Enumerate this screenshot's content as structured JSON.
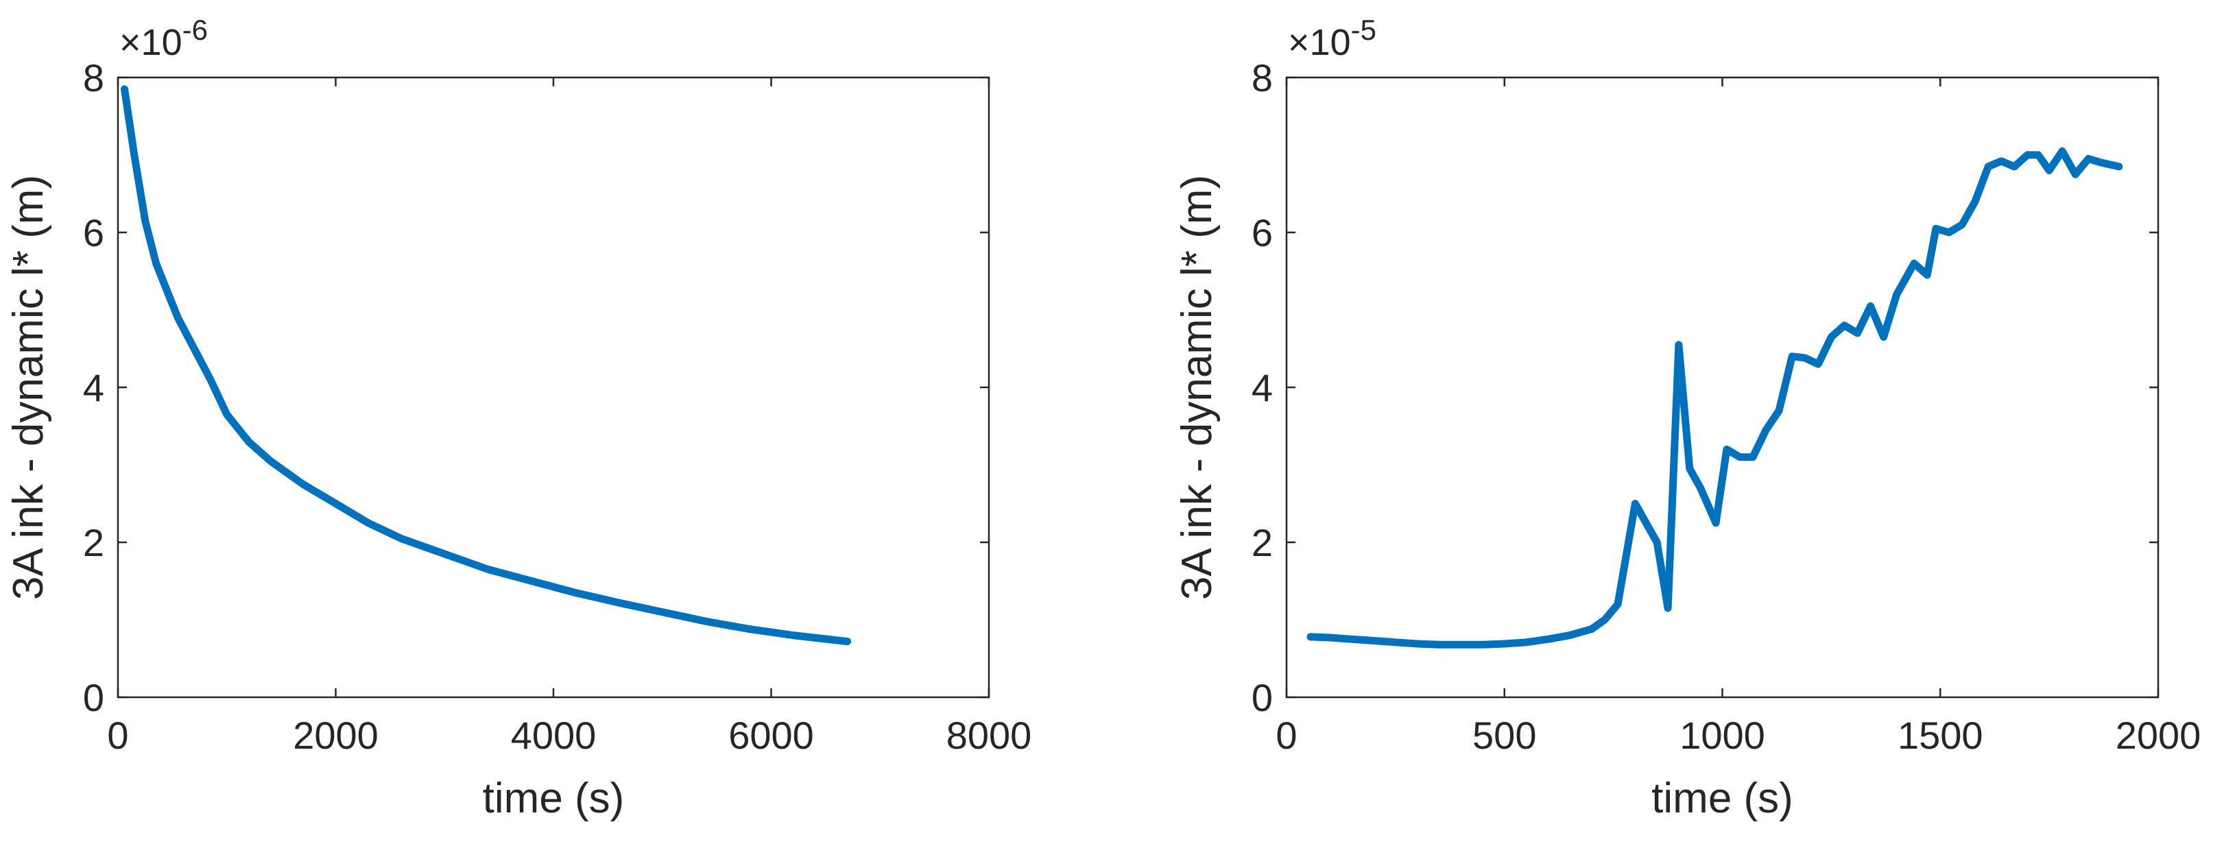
{
  "chart_data": [
    {
      "type": "line",
      "xlabel": "time (s)",
      "ylabel": "3A ink - dynamic l* (m)",
      "exponent_label": "×10",
      "exponent_power": "-6",
      "xlim": [
        0,
        8000
      ],
      "ylim": [
        0,
        8
      ],
      "xticks": [
        "0",
        "2000",
        "4000",
        "6000",
        "8000"
      ],
      "yticks": [
        "0",
        "2",
        "4",
        "6",
        "8"
      ],
      "grid": false,
      "line_color": "#0072BD",
      "series": [
        {
          "x": [
            60,
            150,
            250,
            350,
            450,
            550,
            700,
            850,
            1000,
            1200,
            1400,
            1700,
            2000,
            2300,
            2600,
            3000,
            3400,
            3800,
            4200,
            4600,
            5000,
            5400,
            5800,
            6200,
            6700
          ],
          "y": [
            7.85,
            7.0,
            6.15,
            5.6,
            5.25,
            4.9,
            4.5,
            4.1,
            3.65,
            3.3,
            3.05,
            2.75,
            2.5,
            2.25,
            2.05,
            1.85,
            1.65,
            1.5,
            1.35,
            1.22,
            1.1,
            0.98,
            0.88,
            0.8,
            0.72
          ]
        }
      ]
    },
    {
      "type": "line",
      "xlabel": "time (s)",
      "ylabel": "3A ink - dynamic l* (m)",
      "exponent_label": "×10",
      "exponent_power": "-5",
      "xlim": [
        0,
        2000
      ],
      "ylim": [
        0,
        8
      ],
      "xticks": [
        "0",
        "500",
        "1000",
        "1500",
        "2000"
      ],
      "yticks": [
        "0",
        "2",
        "4",
        "6",
        "8"
      ],
      "grid": false,
      "line_color": "#0072BD",
      "series": [
        {
          "x": [
            55,
            100,
            150,
            200,
            250,
            300,
            350,
            400,
            450,
            500,
            550,
            600,
            650,
            700,
            730,
            760,
            800,
            820,
            850,
            875,
            900,
            925,
            950,
            985,
            1010,
            1040,
            1070,
            1100,
            1130,
            1160,
            1190,
            1220,
            1250,
            1280,
            1310,
            1340,
            1370,
            1400,
            1440,
            1470,
            1490,
            1520,
            1550,
            1580,
            1610,
            1640,
            1670,
            1700,
            1725,
            1750,
            1780,
            1810,
            1840,
            1870,
            1910
          ],
          "y": [
            0.78,
            0.77,
            0.75,
            0.73,
            0.71,
            0.69,
            0.68,
            0.68,
            0.68,
            0.69,
            0.71,
            0.75,
            0.8,
            0.88,
            1.0,
            1.2,
            2.5,
            2.3,
            2.0,
            1.15,
            4.55,
            2.95,
            2.7,
            2.25,
            3.2,
            3.1,
            3.1,
            3.45,
            3.7,
            4.4,
            4.38,
            4.3,
            4.65,
            4.8,
            4.7,
            5.05,
            4.65,
            5.2,
            5.6,
            5.45,
            6.05,
            6.0,
            6.1,
            6.4,
            6.85,
            6.92,
            6.85,
            7.0,
            7.0,
            6.8,
            7.05,
            6.75,
            6.95,
            6.9,
            6.85
          ]
        }
      ]
    }
  ]
}
